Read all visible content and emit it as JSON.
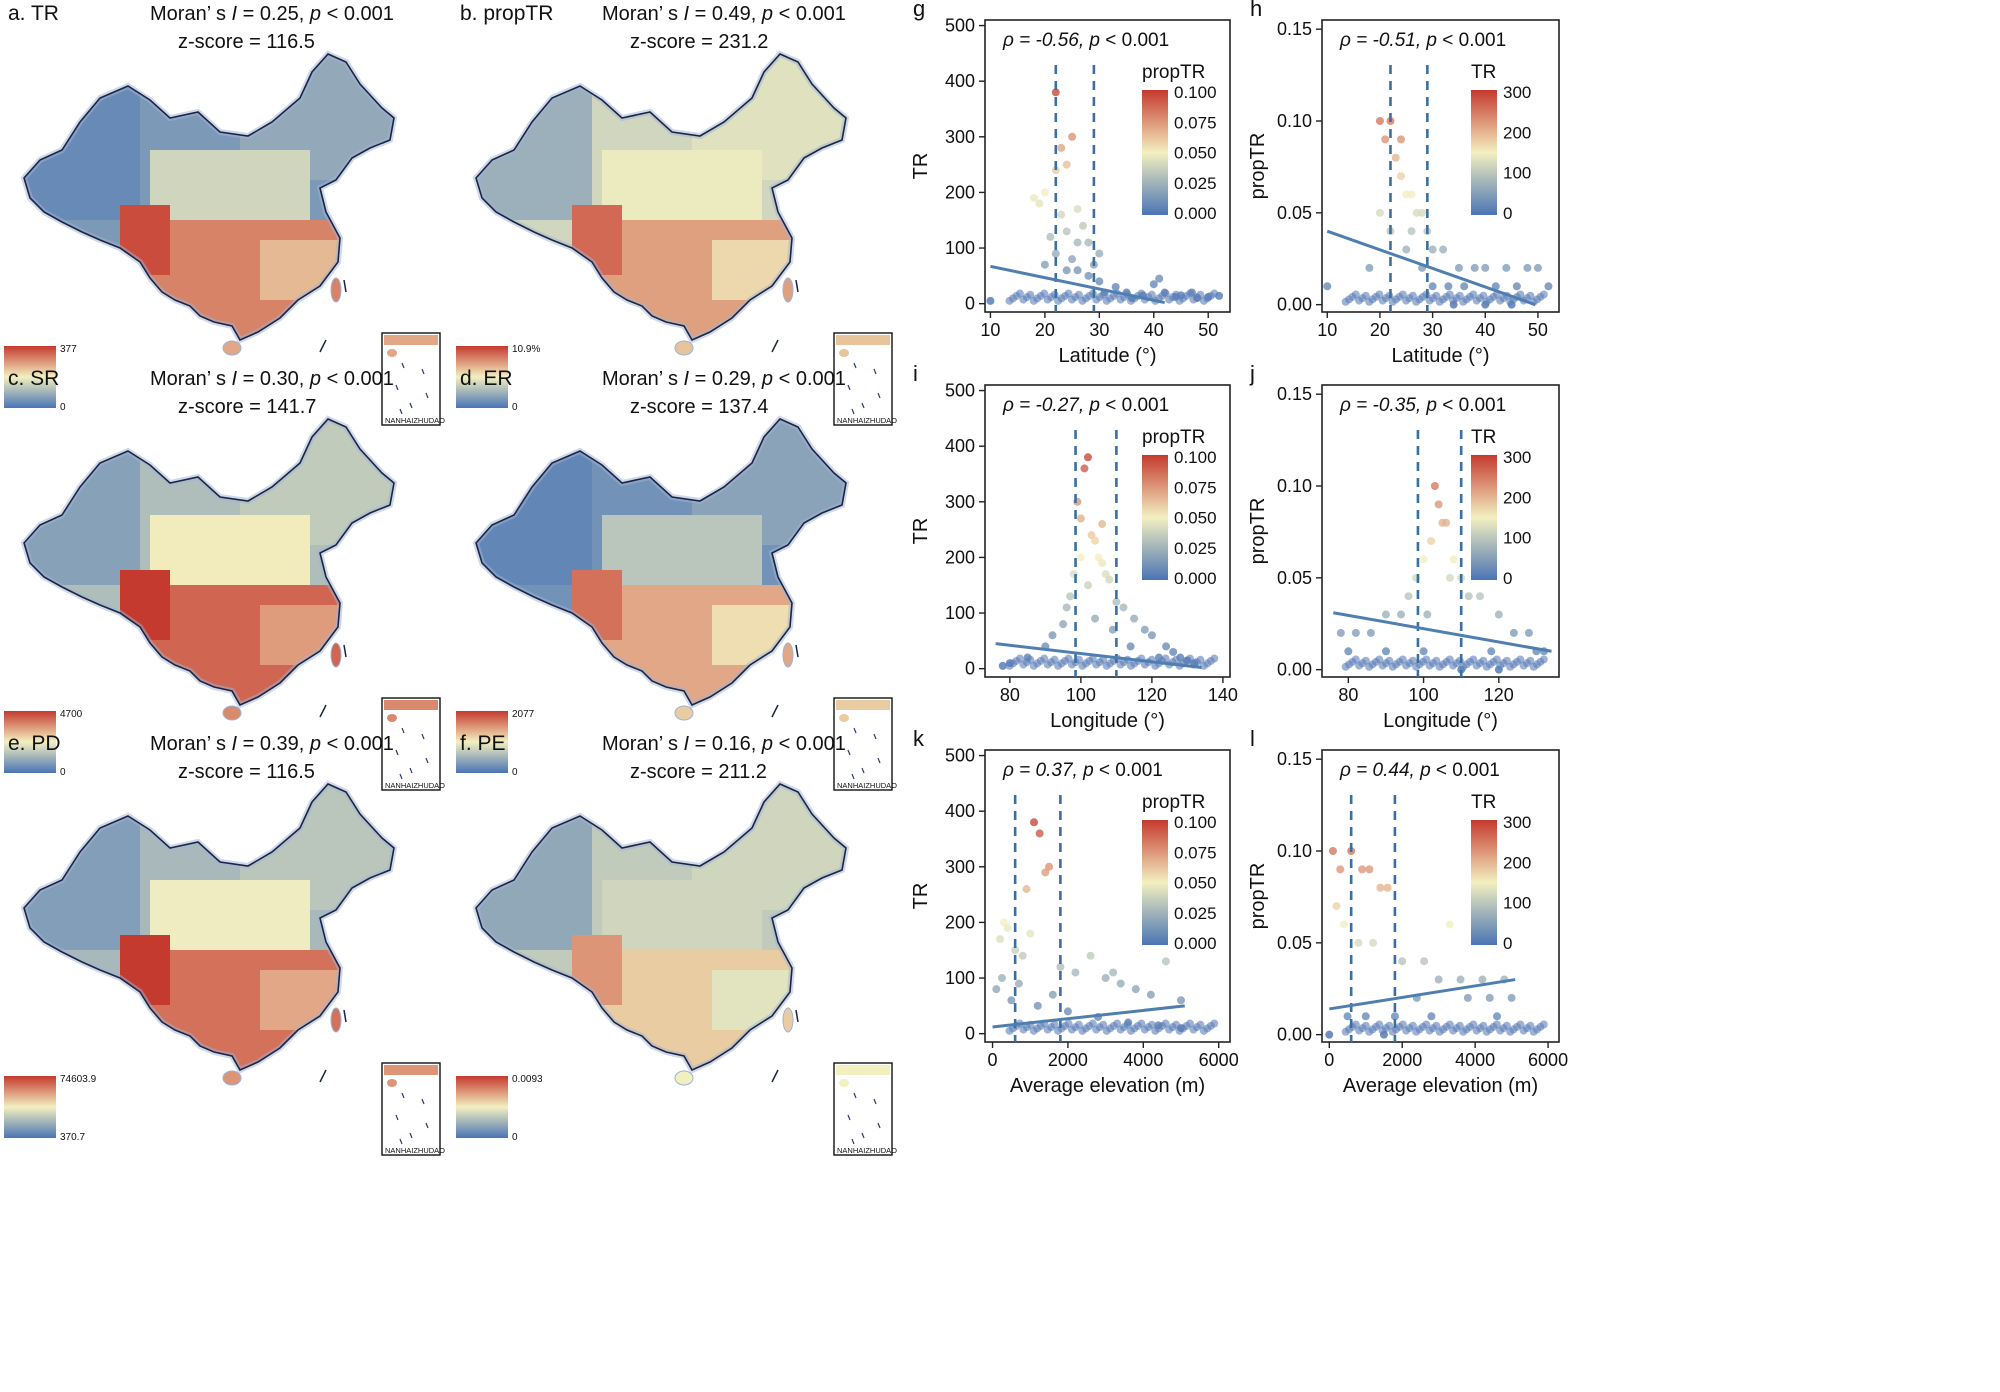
{
  "colors": {
    "scale_low": "#4a74b4",
    "scale_mid": "#f3f0c0",
    "scale_high": "#c53a2e",
    "point_fill": "#5b7fb8",
    "trend_line": "#4f7fb0",
    "threshold_line": "#3a6fa3",
    "map_border": "#1b2440"
  },
  "maps": [
    {
      "panel": "a.",
      "code": "TR",
      "stat_prefix": "Moran’ s ",
      "stat_i": "I",
      "stat_val": " = 0.25, ",
      "stat_p": "p",
      "stat_p_val": " < 0.001",
      "zscore": "z-score = 116.5",
      "legend_max": "377",
      "legend_min": "0",
      "inset_label": "NANHAIZHUDAO",
      "level": 0.15,
      "south_level": 0.8
    },
    {
      "panel": "b.",
      "code": "propTR",
      "stat_prefix": "Moran’ s ",
      "stat_i": "I",
      "stat_val": " = 0.49, ",
      "stat_p": "p",
      "stat_p_val": " < 0.001",
      "zscore": "z-score = 231.2",
      "legend_max": "10.9%",
      "legend_min": "0",
      "inset_label": "NANHAIZHUDAO",
      "level": 0.4,
      "south_level": 0.72
    },
    {
      "panel": "c.",
      "code": "SR",
      "stat_prefix": "Moran’ s ",
      "stat_i": "I",
      "stat_val": " = 0.30, ",
      "stat_p": "p",
      "stat_p_val": " < 0.001",
      "zscore": "z-score = 141.7",
      "legend_max": "4700",
      "legend_min": "0",
      "inset_label": "NANHAIZHUDAO",
      "level": 0.3,
      "south_level": 0.88
    },
    {
      "panel": "d.",
      "code": "ER",
      "stat_prefix": "Moran’ s ",
      "stat_i": "I",
      "stat_val": " = 0.29, ",
      "stat_p": "p",
      "stat_p_val": " < 0.001",
      "zscore": "z-score = 137.4",
      "legend_max": "2077",
      "legend_min": "0",
      "inset_label": "NANHAIZHUDAO",
      "level": 0.12,
      "south_level": 0.7
    },
    {
      "panel": "e.",
      "code": "PD",
      "stat_prefix": "Moran’ s ",
      "stat_i": "I",
      "stat_val": " = 0.39, ",
      "stat_p": "p",
      "stat_p_val": " < 0.001",
      "zscore": "z-score = 116.5",
      "legend_max": "74603.9",
      "legend_min": "370.7",
      "inset_label": "NANHAIZHUDAO",
      "level": 0.28,
      "south_level": 0.85
    },
    {
      "panel": "f.",
      "code": "PE",
      "stat_prefix": "Moran’ s ",
      "stat_i": "I",
      "stat_val": " = 0.16, ",
      "stat_p": "p",
      "stat_p_val": " < 0.001",
      "zscore": "z-score = 211.2",
      "legend_max": "0.0093",
      "legend_min": "0",
      "inset_label": "NANHAIZHUDAO",
      "level": 0.35,
      "south_level": 0.6
    }
  ],
  "chart_data": [
    {
      "panel": "g",
      "type": "scatter",
      "xlabel": "Latitude (°)",
      "ylabel": "TR",
      "rho": "ρ = -0.56,",
      "p_text": "p",
      "p_val": " < 0.001",
      "xlim": [
        9,
        54
      ],
      "ylim": [
        -15,
        510
      ],
      "xticks": [
        10,
        20,
        30,
        40,
        50
      ],
      "yticks": [
        0,
        100,
        200,
        300,
        400,
        500
      ],
      "color_var": "propTR",
      "color_ticks": [
        "0.100",
        "0.075",
        "0.050",
        "0.025",
        "0.000"
      ],
      "vlines": [
        22,
        29
      ],
      "trend": [
        [
          10,
          67
        ],
        [
          42,
          2
        ]
      ],
      "points": [
        [
          18,
          190
        ],
        [
          19,
          180
        ],
        [
          20,
          200
        ],
        [
          21,
          120
        ],
        [
          22,
          380
        ],
        [
          22,
          240
        ],
        [
          23,
          280
        ],
        [
          24,
          250
        ],
        [
          25,
          300
        ],
        [
          26,
          170
        ],
        [
          23,
          160
        ],
        [
          24,
          130
        ],
        [
          27,
          140
        ],
        [
          28,
          110
        ],
        [
          30,
          90
        ],
        [
          22,
          90
        ],
        [
          25,
          80
        ],
        [
          26,
          60
        ],
        [
          30,
          40
        ],
        [
          33,
          30
        ],
        [
          35,
          20
        ],
        [
          38,
          15
        ],
        [
          40,
          35
        ],
        [
          42,
          20
        ],
        [
          45,
          15
        ],
        [
          48,
          10
        ],
        [
          50,
          12
        ],
        [
          52,
          14
        ],
        [
          28,
          50
        ],
        [
          31,
          20
        ],
        [
          24,
          60
        ],
        [
          20,
          70
        ],
        [
          26,
          110
        ],
        [
          29,
          70
        ],
        [
          36,
          10
        ],
        [
          44,
          12
        ],
        [
          10,
          5
        ],
        [
          47,
          20
        ],
        [
          41,
          45
        ]
      ]
    },
    {
      "panel": "h",
      "type": "scatter",
      "xlabel": "Latitude (°)",
      "ylabel": "propTR",
      "rho": "ρ = -0.51,",
      "p_text": "p",
      "p_val": " < 0.001",
      "xlim": [
        9,
        54
      ],
      "ylim": [
        -0.004,
        0.155
      ],
      "xticks": [
        10,
        20,
        30,
        40,
        50
      ],
      "yticks": [
        0.0,
        0.05,
        0.1,
        0.15
      ],
      "color_var": "TR",
      "color_ticks": [
        "300",
        "200",
        "100",
        "0"
      ],
      "vlines": [
        22,
        29
      ],
      "trend": [
        [
          10,
          0.04
        ],
        [
          49.5,
          0.0
        ]
      ],
      "points": [
        [
          20,
          0.1
        ],
        [
          21,
          0.09
        ],
        [
          22,
          0.1
        ],
        [
          23,
          0.08
        ],
        [
          24,
          0.07
        ],
        [
          25,
          0.06
        ],
        [
          26,
          0.06
        ],
        [
          27,
          0.05
        ],
        [
          28,
          0.05
        ],
        [
          29,
          0.04
        ],
        [
          30,
          0.03
        ],
        [
          32,
          0.03
        ],
        [
          35,
          0.02
        ],
        [
          38,
          0.02
        ],
        [
          40,
          0.02
        ],
        [
          44,
          0.02
        ],
        [
          48,
          0.02
        ],
        [
          50,
          0.02
        ],
        [
          52,
          0.01
        ],
        [
          46,
          0.01
        ],
        [
          42,
          0.01
        ],
        [
          36,
          0.01
        ],
        [
          33,
          0.01
        ],
        [
          30,
          0.01
        ],
        [
          28,
          0.02
        ],
        [
          25,
          0.03
        ],
        [
          22,
          0.04
        ],
        [
          20,
          0.05
        ],
        [
          18,
          0.02
        ],
        [
          24,
          0.09
        ],
        [
          26,
          0.04
        ],
        [
          34,
          0.0
        ],
        [
          40,
          0.0
        ],
        [
          45,
          0.0
        ],
        [
          10,
          0.01
        ]
      ]
    },
    {
      "panel": "i",
      "type": "scatter",
      "xlabel": "Longitude (°)",
      "ylabel": "TR",
      "rho": "ρ = -0.27,",
      "p_text": "p",
      "p_val": " < 0.001",
      "xlim": [
        73,
        142
      ],
      "ylim": [
        -15,
        510
      ],
      "xticks": [
        80,
        100,
        120,
        140
      ],
      "yticks": [
        0,
        100,
        200,
        300,
        400,
        500
      ],
      "color_var": "propTR",
      "color_ticks": [
        "0.100",
        "0.075",
        "0.050",
        "0.025",
        "0.000"
      ],
      "vlines": [
        98.5,
        110
      ],
      "trend": [
        [
          76,
          45
        ],
        [
          134,
          2
        ]
      ],
      "points": [
        [
          99,
          300
        ],
        [
          100,
          270
        ],
        [
          101,
          360
        ],
        [
          102,
          380
        ],
        [
          103,
          240
        ],
        [
          104,
          230
        ],
        [
          105,
          200
        ],
        [
          106,
          190
        ],
        [
          107,
          170
        ],
        [
          108,
          160
        ],
        [
          100,
          200
        ],
        [
          102,
          150
        ],
        [
          97,
          130
        ],
        [
          96,
          110
        ],
        [
          110,
          120
        ],
        [
          112,
          110
        ],
        [
          115,
          90
        ],
        [
          118,
          70
        ],
        [
          120,
          60
        ],
        [
          124,
          40
        ],
        [
          126,
          30
        ],
        [
          128,
          20
        ],
        [
          130,
          15
        ],
        [
          132,
          10
        ],
        [
          90,
          40
        ],
        [
          85,
          20
        ],
        [
          80,
          10
        ],
        [
          78,
          5
        ],
        [
          92,
          60
        ],
        [
          95,
          80
        ],
        [
          104,
          90
        ],
        [
          109,
          70
        ],
        [
          114,
          40
        ],
        [
          122,
          20
        ],
        [
          98,
          170
        ],
        [
          106,
          260
        ]
      ]
    },
    {
      "panel": "j",
      "type": "scatter",
      "xlabel": "Longitude (°)",
      "ylabel": "propTR",
      "rho": "ρ = -0.35,",
      "p_text": "p",
      "p_val": " < 0.001",
      "xlim": [
        73,
        136
      ],
      "ylim": [
        -0.004,
        0.155
      ],
      "xticks": [
        80,
        100,
        120
      ],
      "yticks": [
        0.0,
        0.05,
        0.1,
        0.15
      ],
      "color_var": "TR",
      "color_ticks": [
        "300",
        "200",
        "100",
        "0"
      ],
      "vlines": [
        98.5,
        110
      ],
      "trend": [
        [
          76,
          0.031
        ],
        [
          134,
          0.01
        ]
      ],
      "points": [
        [
          103,
          0.1
        ],
        [
          104,
          0.09
        ],
        [
          105,
          0.08
        ],
        [
          106,
          0.08
        ],
        [
          102,
          0.07
        ],
        [
          100,
          0.06
        ],
        [
          108,
          0.06
        ],
        [
          110,
          0.05
        ],
        [
          112,
          0.04
        ],
        [
          115,
          0.04
        ],
        [
          98,
          0.05
        ],
        [
          96,
          0.04
        ],
        [
          94,
          0.03
        ],
        [
          90,
          0.03
        ],
        [
          86,
          0.02
        ],
        [
          82,
          0.02
        ],
        [
          78,
          0.02
        ],
        [
          120,
          0.03
        ],
        [
          124,
          0.02
        ],
        [
          128,
          0.02
        ],
        [
          130,
          0.01
        ],
        [
          132,
          0.01
        ],
        [
          118,
          0.01
        ],
        [
          100,
          0.01
        ],
        [
          90,
          0.01
        ],
        [
          80,
          0.01
        ],
        [
          110,
          0.0
        ],
        [
          120,
          0.0
        ],
        [
          101,
          0.03
        ],
        [
          107,
          0.05
        ]
      ]
    },
    {
      "panel": "k",
      "type": "scatter",
      "xlabel": "Average elevation (m)",
      "ylabel": "TR",
      "rho": "ρ = 0.37,",
      "p_text": "p",
      "p_val": " < 0.001",
      "xlim": [
        -200,
        6300
      ],
      "ylim": [
        -15,
        510
      ],
      "xticks": [
        0,
        2000,
        4000,
        6000
      ],
      "yticks": [
        0,
        100,
        200,
        300,
        400,
        500
      ],
      "color_var": "propTR",
      "color_ticks": [
        "0.100",
        "0.075",
        "0.050",
        "0.025",
        "0.000"
      ],
      "vlines": [
        600,
        1800
      ],
      "trend": [
        [
          0,
          12
        ],
        [
          5100,
          50
        ]
      ],
      "points": [
        [
          1100,
          380
        ],
        [
          1250,
          360
        ],
        [
          1500,
          300
        ],
        [
          1400,
          290
        ],
        [
          900,
          260
        ],
        [
          300,
          200
        ],
        [
          400,
          190
        ],
        [
          200,
          170
        ],
        [
          600,
          150
        ],
        [
          800,
          140
        ],
        [
          1000,
          180
        ],
        [
          1800,
          120
        ],
        [
          2200,
          110
        ],
        [
          2600,
          140
        ],
        [
          3000,
          100
        ],
        [
          3400,
          90
        ],
        [
          3800,
          80
        ],
        [
          4200,
          70
        ],
        [
          4600,
          130
        ],
        [
          5000,
          60
        ],
        [
          100,
          80
        ],
        [
          500,
          60
        ],
        [
          1200,
          50
        ],
        [
          2000,
          40
        ],
        [
          2800,
          30
        ],
        [
          3600,
          20
        ],
        [
          4400,
          15
        ],
        [
          5000,
          10
        ],
        [
          250,
          100
        ],
        [
          700,
          90
        ],
        [
          1600,
          70
        ],
        [
          3200,
          110
        ]
      ]
    },
    {
      "panel": "l",
      "type": "scatter",
      "xlabel": "Average elevation (m)",
      "ylabel": "propTR",
      "rho": "ρ = 0.44,",
      "p_text": "p",
      "p_val": " < 0.001",
      "xlim": [
        -200,
        6300
      ],
      "ylim": [
        -0.004,
        0.155
      ],
      "xticks": [
        0,
        2000,
        4000,
        6000
      ],
      "yticks": [
        0.0,
        0.05,
        0.1,
        0.15
      ],
      "color_var": "TR",
      "color_ticks": [
        "300",
        "200",
        "100",
        "0"
      ],
      "vlines": [
        600,
        1800
      ],
      "trend": [
        [
          0,
          0.014
        ],
        [
          5100,
          0.03
        ]
      ],
      "points": [
        [
          100,
          0.1
        ],
        [
          300,
          0.09
        ],
        [
          600,
          0.1
        ],
        [
          900,
          0.09
        ],
        [
          1100,
          0.09
        ],
        [
          1400,
          0.08
        ],
        [
          1600,
          0.08
        ],
        [
          3300,
          0.06
        ],
        [
          200,
          0.07
        ],
        [
          400,
          0.06
        ],
        [
          800,
          0.05
        ],
        [
          1200,
          0.05
        ],
        [
          2000,
          0.04
        ],
        [
          2600,
          0.04
        ],
        [
          3000,
          0.03
        ],
        [
          3600,
          0.03
        ],
        [
          4200,
          0.03
        ],
        [
          4800,
          0.03
        ],
        [
          5000,
          0.02
        ],
        [
          4400,
          0.02
        ],
        [
          3800,
          0.02
        ],
        [
          2400,
          0.02
        ],
        [
          1800,
          0.01
        ],
        [
          1000,
          0.01
        ],
        [
          500,
          0.01
        ],
        [
          0,
          0.0
        ],
        [
          1500,
          0.0
        ],
        [
          2800,
          0.01
        ],
        [
          4600,
          0.01
        ]
      ]
    }
  ]
}
